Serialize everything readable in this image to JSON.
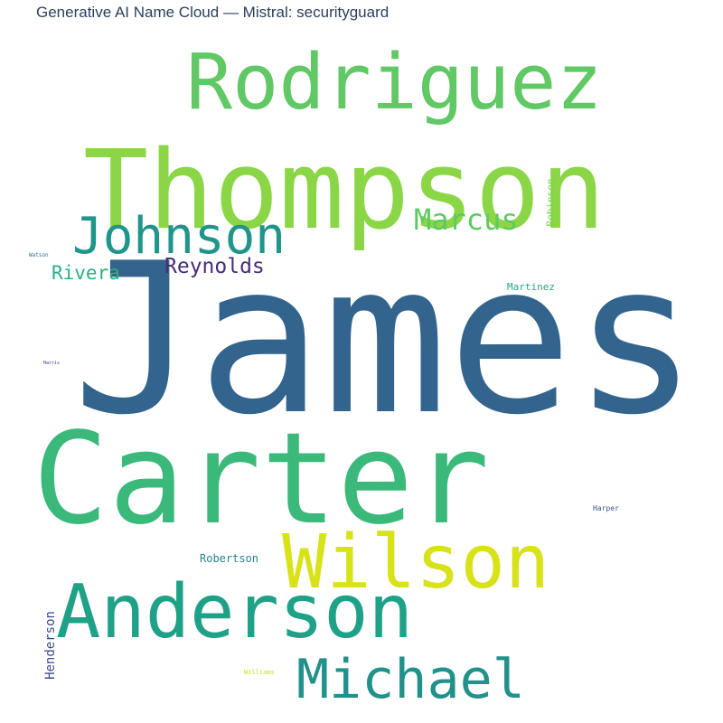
{
  "chart_data": {
    "type": "wordcloud",
    "title": "Generative AI Name Cloud — Mistral: securityguard",
    "words": [
      {
        "text": "James",
        "color": "#32648e",
        "rotated": false
      },
      {
        "text": "Carter",
        "color": "#3bb97a",
        "rotated": false
      },
      {
        "text": "Thompson",
        "color": "#8bd646",
        "rotated": false
      },
      {
        "text": "Rodriguez",
        "color": "#60c864",
        "rotated": false
      },
      {
        "text": "Anderson",
        "color": "#1fa188",
        "rotated": false
      },
      {
        "text": "Wilson",
        "color": "#d8e219",
        "rotated": false
      },
      {
        "text": "Michael",
        "color": "#21918c",
        "rotated": false
      },
      {
        "text": "Johnson",
        "color": "#1f958b",
        "rotated": false
      },
      {
        "text": "Marcus",
        "color": "#5ec962",
        "rotated": false
      },
      {
        "text": "Reynolds",
        "color": "#472c7a",
        "rotated": false
      },
      {
        "text": "Rivera",
        "color": "#2ab07f",
        "rotated": false
      },
      {
        "text": "Robertson",
        "color": "#26828e",
        "rotated": false
      },
      {
        "text": "Henderson",
        "color": "#3e4989",
        "rotated": true
      },
      {
        "text": "Martinez",
        "color": "#22a884",
        "rotated": false
      },
      {
        "text": "Robinson",
        "color": "#7ad151",
        "rotated": true
      },
      {
        "text": "Harper",
        "color": "#3b528b",
        "rotated": false
      },
      {
        "text": "Williams",
        "color": "#c8e020",
        "rotated": false
      },
      {
        "text": "Watson",
        "color": "#2c728e",
        "rotated": false
      },
      {
        "text": "Harris",
        "color": "#482878",
        "rotated": false
      }
    ]
  }
}
